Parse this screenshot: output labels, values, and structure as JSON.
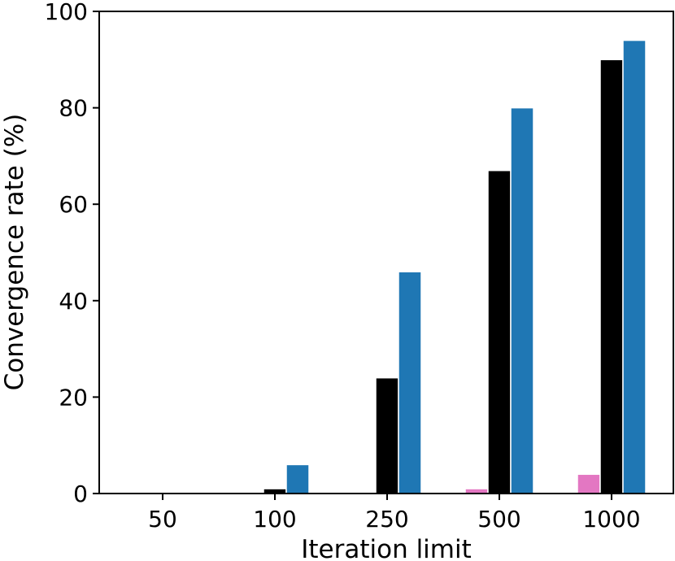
{
  "chart_data": {
    "type": "bar",
    "title": "",
    "xlabel": "Iteration limit",
    "ylabel": "Convergence rate (%)",
    "categories": [
      "50",
      "100",
      "250",
      "500",
      "1000"
    ],
    "series": [
      {
        "color": "#e377c2",
        "values": [
          0,
          0,
          0,
          1,
          4
        ]
      },
      {
        "color": "#000000",
        "values": [
          0,
          1,
          24,
          67,
          90
        ]
      },
      {
        "color": "#1f77b4",
        "values": [
          0,
          6,
          46,
          80,
          94
        ]
      }
    ],
    "ylim": [
      0,
      100
    ],
    "yticks": [
      0,
      20,
      40,
      60,
      80,
      100
    ],
    "grid": false,
    "legend": "none"
  }
}
